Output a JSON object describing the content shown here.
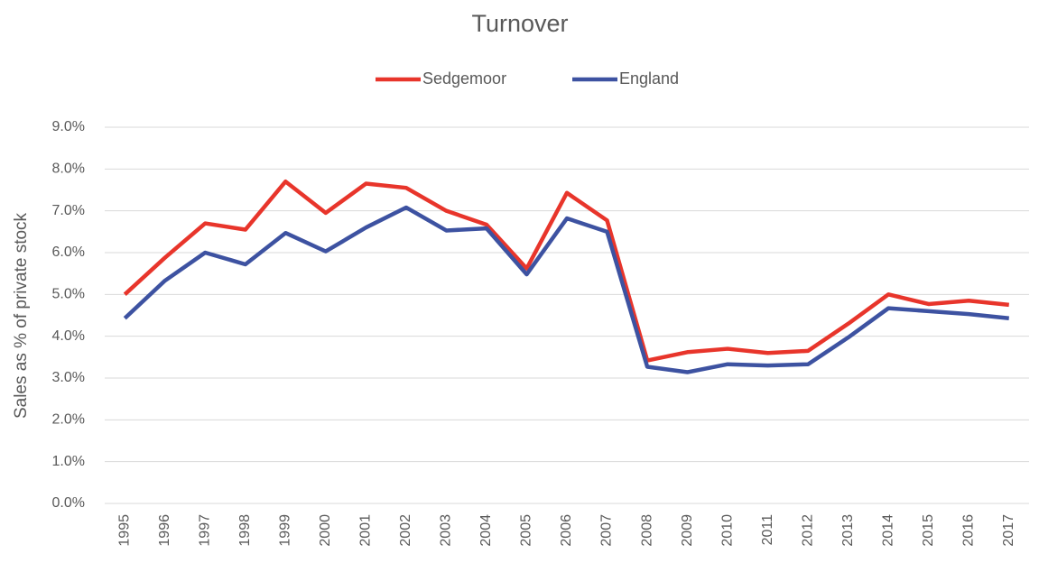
{
  "chart_data": {
    "type": "line",
    "title": "Turnover",
    "y_label": "Sales as % of private stock",
    "categories": [
      "1995",
      "1996",
      "1997",
      "1998",
      "1999",
      "2000",
      "2001",
      "2002",
      "2003",
      "2004",
      "2005",
      "2006",
      "2007",
      "2008",
      "2009",
      "2010",
      "2011",
      "2012",
      "2013",
      "2014",
      "2015",
      "2016",
      "2017"
    ],
    "series": [
      {
        "name": "Sedgemoor",
        "color": "#e8352b",
        "values": [
          5.0,
          5.88,
          6.7,
          6.55,
          7.7,
          6.95,
          7.65,
          7.55,
          7.0,
          6.67,
          5.62,
          7.43,
          6.77,
          3.42,
          3.62,
          3.7,
          3.6,
          3.65,
          4.3,
          5.0,
          4.77,
          4.85,
          4.75
        ]
      },
      {
        "name": "England",
        "color": "#3d52a1",
        "values": [
          4.43,
          5.33,
          6.0,
          5.72,
          6.47,
          6.03,
          6.6,
          7.08,
          6.53,
          6.58,
          5.48,
          6.82,
          6.5,
          3.27,
          3.14,
          3.33,
          3.3,
          3.33,
          3.97,
          4.67,
          4.6,
          4.53,
          4.43
        ]
      }
    ],
    "ylim": [
      0,
      9
    ],
    "yticks": [
      {
        "value": 0,
        "label": "0.0%"
      },
      {
        "value": 1,
        "label": "1.0%"
      },
      {
        "value": 2,
        "label": "2.0%"
      },
      {
        "value": 3,
        "label": "3.0%"
      },
      {
        "value": 4,
        "label": "4.0%"
      },
      {
        "value": 5,
        "label": "5.0%"
      },
      {
        "value": 6,
        "label": "6.0%"
      },
      {
        "value": 7,
        "label": "7.0%"
      },
      {
        "value": 8,
        "label": "8.0%"
      },
      {
        "value": 9,
        "label": "9.0%"
      }
    ],
    "grid": true,
    "legend": "top"
  }
}
